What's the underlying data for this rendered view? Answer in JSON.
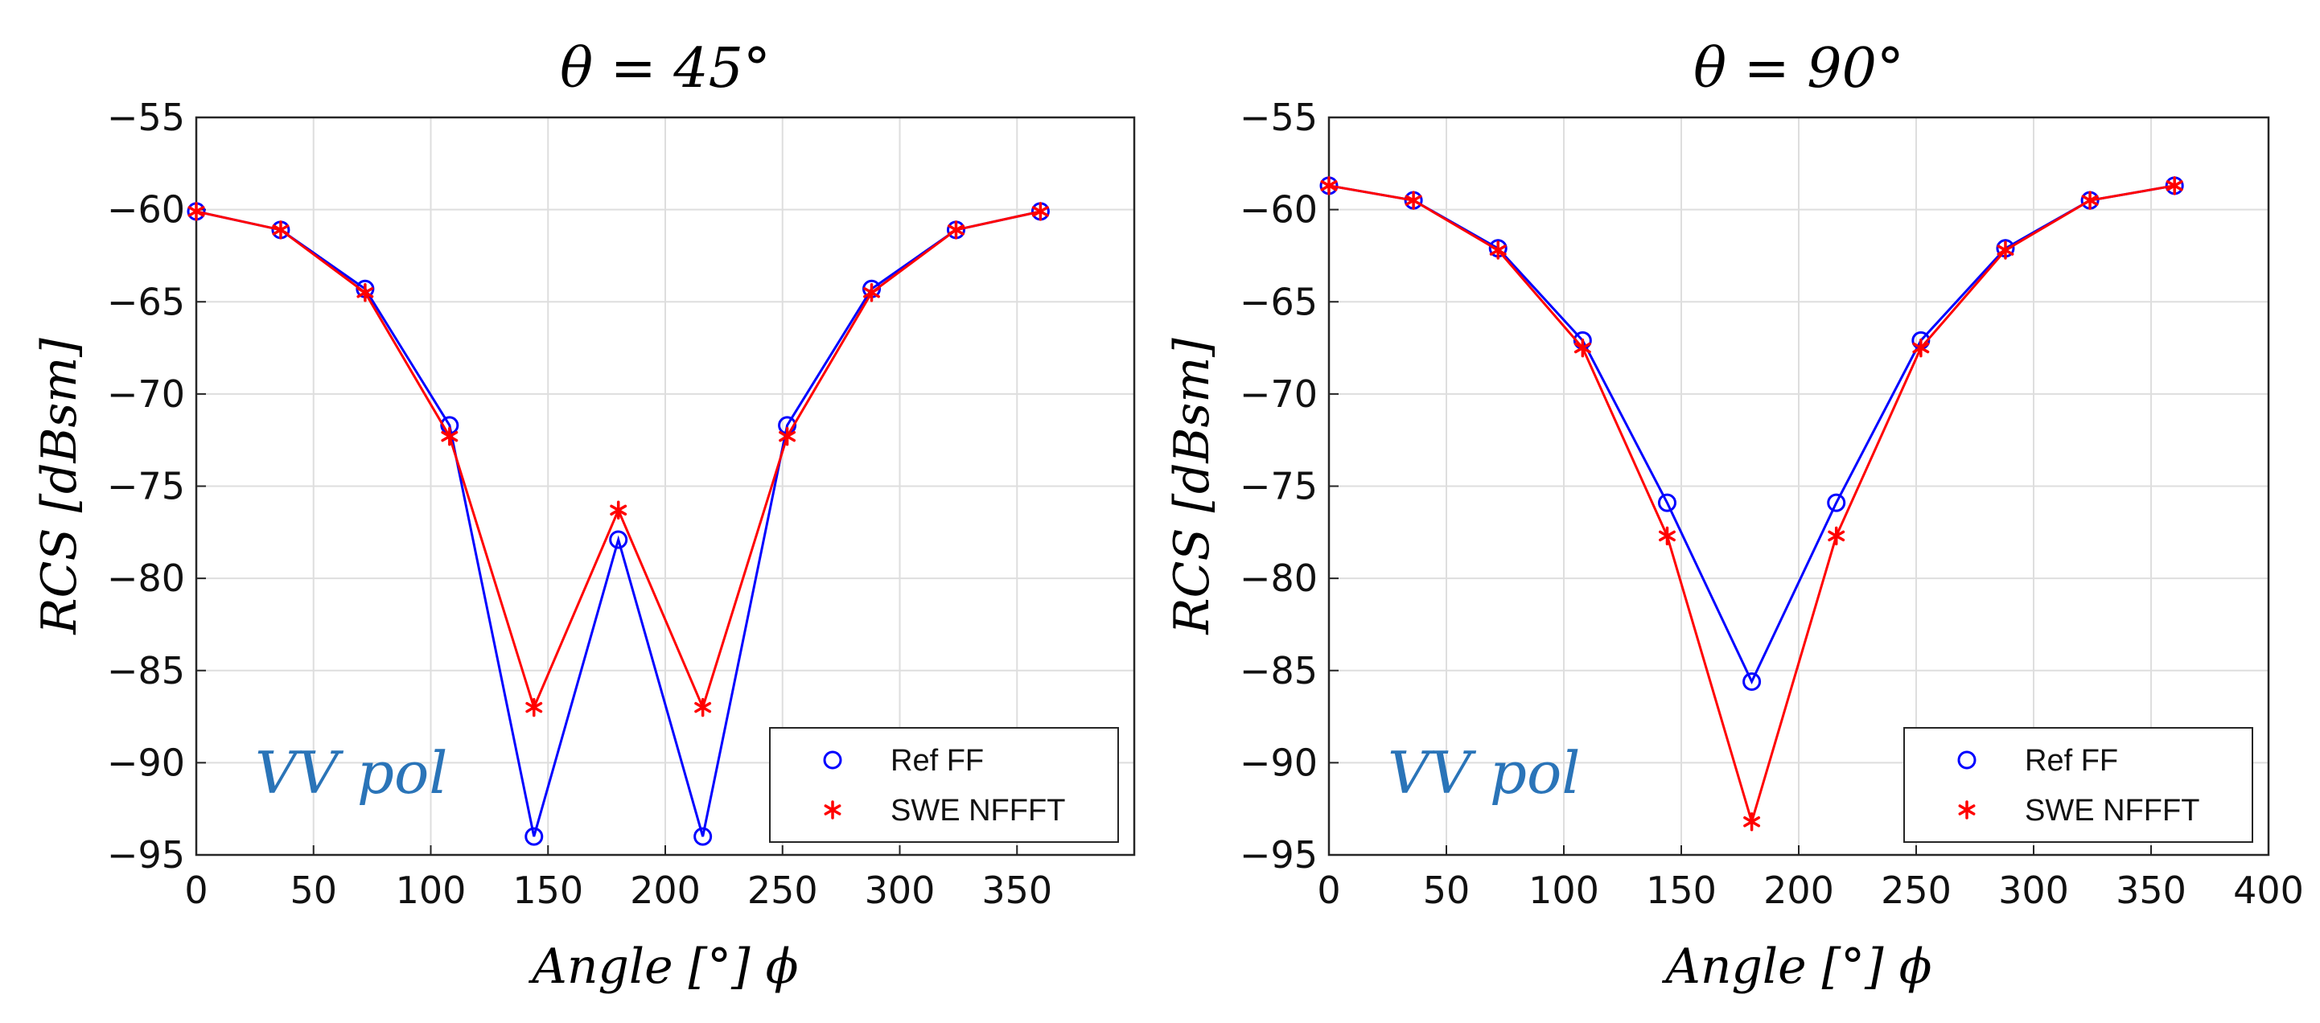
{
  "chart_data": [
    {
      "type": "line",
      "title": "θ = 45°",
      "xlabel": "Angle [°] ϕ",
      "ylabel": "RCS [dBsm]",
      "xlim": [
        0,
        400
      ],
      "ylim": [
        -95,
        -55
      ],
      "xticks": [
        0,
        50,
        100,
        150,
        200,
        250,
        300,
        350
      ],
      "yticks": [
        -55,
        -60,
        -65,
        -70,
        -75,
        -80,
        -85,
        -90,
        -95
      ],
      "grid": true,
      "legend_position": "bottom-right",
      "annotation": "VV pol",
      "series": [
        {
          "name": "Ref FF",
          "color": "#0000ff",
          "marker": "circle",
          "x": [
            0,
            36,
            72,
            108,
            144,
            180,
            216,
            252,
            288,
            324,
            360
          ],
          "y": [
            -60.1,
            -61.1,
            -64.3,
            -71.7,
            -94.0,
            -77.9,
            -94.0,
            -71.7,
            -64.3,
            -61.1,
            -60.1
          ]
        },
        {
          "name": "SWE NFFFT",
          "color": "#ff0000",
          "marker": "asterisk",
          "x": [
            0,
            36,
            72,
            108,
            144,
            180,
            216,
            252,
            288,
            324,
            360
          ],
          "y": [
            -60.1,
            -61.1,
            -64.5,
            -72.3,
            -87.0,
            -76.3,
            -87.0,
            -72.3,
            -64.5,
            -61.1,
            -60.1
          ]
        }
      ]
    },
    {
      "type": "line",
      "title": "θ = 90°",
      "xlabel": "Angle [°] ϕ",
      "ylabel": "RCS [dBsm]",
      "xlim": [
        0,
        400
      ],
      "ylim": [
        -95,
        -55
      ],
      "xticks": [
        0,
        50,
        100,
        150,
        200,
        250,
        300,
        350,
        400
      ],
      "yticks": [
        -55,
        -60,
        -65,
        -70,
        -75,
        -80,
        -85,
        -90,
        -95
      ],
      "grid": true,
      "legend_position": "bottom-right",
      "annotation": "VV pol",
      "series": [
        {
          "name": "Ref FF",
          "color": "#0000ff",
          "marker": "circle",
          "x": [
            0,
            36,
            72,
            108,
            144,
            180,
            216,
            252,
            288,
            324,
            360
          ],
          "y": [
            -58.7,
            -59.5,
            -62.1,
            -67.1,
            -75.9,
            -85.6,
            -75.9,
            -67.1,
            -62.1,
            -59.5,
            -58.7
          ]
        },
        {
          "name": "SWE NFFFT",
          "color": "#ff0000",
          "marker": "asterisk",
          "x": [
            0,
            36,
            72,
            108,
            144,
            180,
            216,
            252,
            288,
            324,
            360
          ],
          "y": [
            -58.7,
            -59.5,
            -62.2,
            -67.5,
            -77.7,
            -93.2,
            -77.7,
            -67.5,
            -62.2,
            -59.5,
            -58.7
          ]
        }
      ]
    }
  ]
}
